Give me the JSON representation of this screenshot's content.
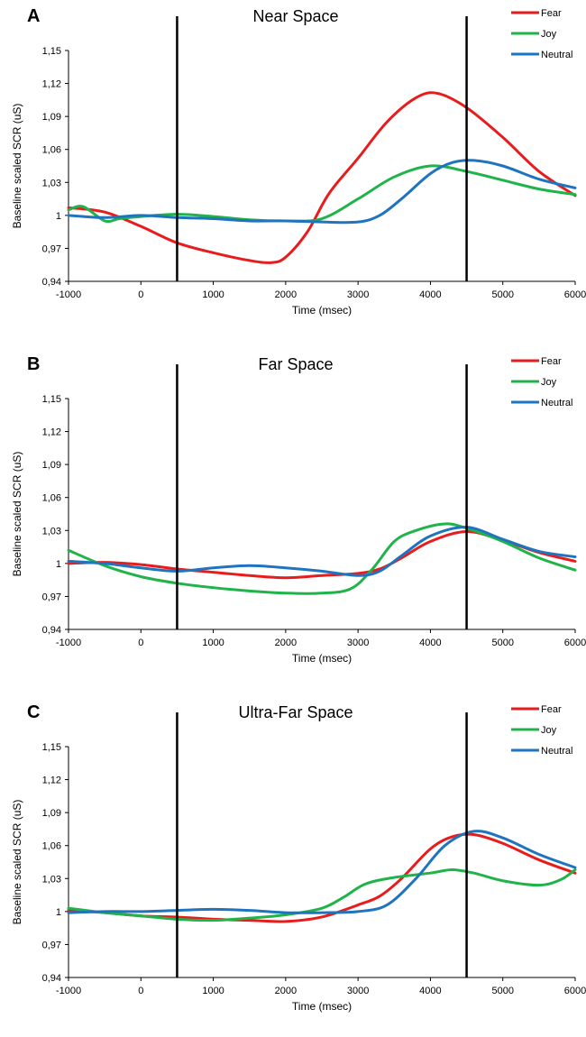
{
  "colors": {
    "Fear": "#e81c1c",
    "Joy": "#1fb34a",
    "Neutral": "#1f74bf",
    "marker": "#000000"
  },
  "chart_data": [
    {
      "type": "line",
      "panel": "A",
      "title": "Near Space",
      "xlabel": "Time (msec)",
      "ylabel": "Baseline scaled SCR (uS)",
      "xlim": [
        -1000,
        6000
      ],
      "ylim": [
        0.94,
        1.15
      ],
      "xticks": [
        -1000,
        0,
        1000,
        2000,
        3000,
        4000,
        5000,
        6000
      ],
      "xtick_labels": [
        "-1000",
        "0",
        "1000",
        "2000",
        "3000",
        "4000",
        "5000",
        "6000"
      ],
      "yticks": [
        0.94,
        0.97,
        1.0,
        1.03,
        1.06,
        1.09,
        1.12,
        1.15
      ],
      "ytick_labels": [
        "0,94",
        "0,97",
        "1",
        "1,03",
        "1,06",
        "1,09",
        "1,12",
        "1,15"
      ],
      "vlines": [
        500,
        4500
      ],
      "legend": "top-right",
      "grid": false,
      "series": [
        {
          "name": "Fear",
          "x": [
            -1000,
            -500,
            0,
            500,
            1000,
            1500,
            1800,
            2000,
            2300,
            2600,
            3000,
            3400,
            3800,
            4100,
            4500,
            5000,
            5500,
            6000
          ],
          "y": [
            1.007,
            1.003,
            0.99,
            0.975,
            0.966,
            0.959,
            0.957,
            0.962,
            0.985,
            1.02,
            1.052,
            1.085,
            1.107,
            1.111,
            1.098,
            1.071,
            1.04,
            1.018
          ]
        },
        {
          "name": "Joy",
          "x": [
            -1000,
            -800,
            -500,
            -300,
            0,
            500,
            1000,
            1500,
            2000,
            2500,
            3000,
            3500,
            4000,
            4500,
            5000,
            5500,
            6000
          ],
          "y": [
            1.005,
            1.008,
            0.995,
            0.997,
            0.999,
            1.001,
            0.999,
            0.996,
            0.995,
            0.997,
            1.015,
            1.035,
            1.045,
            1.04,
            1.032,
            1.024,
            1.019
          ]
        },
        {
          "name": "Neutral",
          "x": [
            -1000,
            -500,
            0,
            500,
            1000,
            1500,
            2000,
            2500,
            3000,
            3300,
            3600,
            4000,
            4300,
            4600,
            5000,
            5500,
            6000
          ],
          "y": [
            1.0,
            0.998,
            1.0,
            0.998,
            0.997,
            0.995,
            0.995,
            0.994,
            0.994,
            1.0,
            1.015,
            1.038,
            1.048,
            1.05,
            1.045,
            1.033,
            1.025
          ]
        }
      ]
    },
    {
      "type": "line",
      "panel": "B",
      "title": "Far Space",
      "xlabel": "Time (msec)",
      "ylabel": "Baseline scaled SCR (uS)",
      "xlim": [
        -1000,
        6000
      ],
      "ylim": [
        0.94,
        1.15
      ],
      "xticks": [
        -1000,
        0,
        1000,
        2000,
        3000,
        4000,
        5000,
        6000
      ],
      "xtick_labels": [
        "-1000",
        "0",
        "1000",
        "2000",
        "3000",
        "4000",
        "5000",
        "6000"
      ],
      "yticks": [
        0.94,
        0.97,
        1.0,
        1.03,
        1.06,
        1.09,
        1.12,
        1.15
      ],
      "ytick_labels": [
        "0,94",
        "0,97",
        "1",
        "1,03",
        "1,06",
        "1,09",
        "1,12",
        "1,15"
      ],
      "vlines": [
        500,
        4500
      ],
      "legend": "top-right",
      "grid": false,
      "series": [
        {
          "name": "Fear",
          "x": [
            -1000,
            -500,
            0,
            500,
            1000,
            1500,
            2000,
            2500,
            3000,
            3300,
            3600,
            4000,
            4500,
            5000,
            5500,
            6000
          ],
          "y": [
            1.0,
            1.001,
            0.999,
            0.995,
            0.992,
            0.989,
            0.987,
            0.989,
            0.991,
            0.995,
            1.005,
            1.02,
            1.029,
            1.021,
            1.01,
            1.002
          ]
        },
        {
          "name": "Joy",
          "x": [
            -1000,
            -500,
            0,
            500,
            1000,
            1500,
            2000,
            2500,
            2900,
            3200,
            3500,
            3800,
            4200,
            4500,
            5000,
            5500,
            6000
          ],
          "y": [
            1.012,
            0.998,
            0.988,
            0.982,
            0.978,
            0.975,
            0.973,
            0.973,
            0.977,
            0.995,
            1.02,
            1.03,
            1.036,
            1.032,
            1.02,
            1.005,
            0.994
          ]
        },
        {
          "name": "Neutral",
          "x": [
            -1000,
            -500,
            0,
            500,
            1000,
            1500,
            2000,
            2500,
            3000,
            3300,
            3600,
            4000,
            4500,
            5000,
            5500,
            6000
          ],
          "y": [
            1.002,
            1.0,
            0.996,
            0.993,
            0.996,
            0.998,
            0.996,
            0.993,
            0.989,
            0.993,
            1.007,
            1.025,
            1.033,
            1.022,
            1.011,
            1.006
          ]
        }
      ]
    },
    {
      "type": "line",
      "panel": "C",
      "title": "Ultra-Far Space",
      "xlabel": "Time (msec)",
      "ylabel": "Baseline scaled SCR (uS)",
      "xlim": [
        -1000,
        6000
      ],
      "ylim": [
        0.94,
        1.15
      ],
      "xticks": [
        -1000,
        0,
        1000,
        2000,
        3000,
        4000,
        5000,
        6000
      ],
      "xtick_labels": [
        "-1000",
        "0",
        "1000",
        "2000",
        "3000",
        "4000",
        "5000",
        "6000"
      ],
      "yticks": [
        0.94,
        0.97,
        1.0,
        1.03,
        1.06,
        1.09,
        1.12,
        1.15
      ],
      "ytick_labels": [
        "0,94",
        "0,97",
        "1",
        "1,03",
        "1,06",
        "1,09",
        "1,12",
        "1,15"
      ],
      "vlines": [
        500,
        4500
      ],
      "legend": "top-right",
      "grid": false,
      "series": [
        {
          "name": "Fear",
          "x": [
            -1000,
            -500,
            0,
            500,
            1000,
            1500,
            2000,
            2500,
            3000,
            3300,
            3600,
            4000,
            4300,
            4600,
            5000,
            5500,
            6000
          ],
          "y": [
            1.001,
            0.999,
            0.996,
            0.995,
            0.993,
            0.992,
            0.991,
            0.995,
            1.006,
            1.014,
            1.03,
            1.057,
            1.068,
            1.07,
            1.062,
            1.047,
            1.035
          ]
        },
        {
          "name": "Joy",
          "x": [
            -1000,
            -500,
            0,
            500,
            1000,
            1500,
            2000,
            2500,
            2800,
            3100,
            3500,
            4000,
            4300,
            4600,
            5000,
            5500,
            5800,
            6000
          ],
          "y": [
            1.003,
            0.999,
            0.996,
            0.993,
            0.992,
            0.994,
            0.997,
            1.003,
            1.013,
            1.025,
            1.031,
            1.035,
            1.038,
            1.035,
            1.028,
            1.024,
            1.029,
            1.038
          ]
        },
        {
          "name": "Neutral",
          "x": [
            -1000,
            -500,
            0,
            500,
            1000,
            1500,
            2000,
            2500,
            3000,
            3400,
            3800,
            4200,
            4600,
            5000,
            5500,
            6000
          ],
          "y": [
            0.999,
            1.0,
            1.0,
            1.001,
            1.002,
            1.001,
            0.999,
            0.999,
            1.0,
            1.006,
            1.03,
            1.06,
            1.073,
            1.067,
            1.052,
            1.04
          ]
        }
      ]
    }
  ]
}
